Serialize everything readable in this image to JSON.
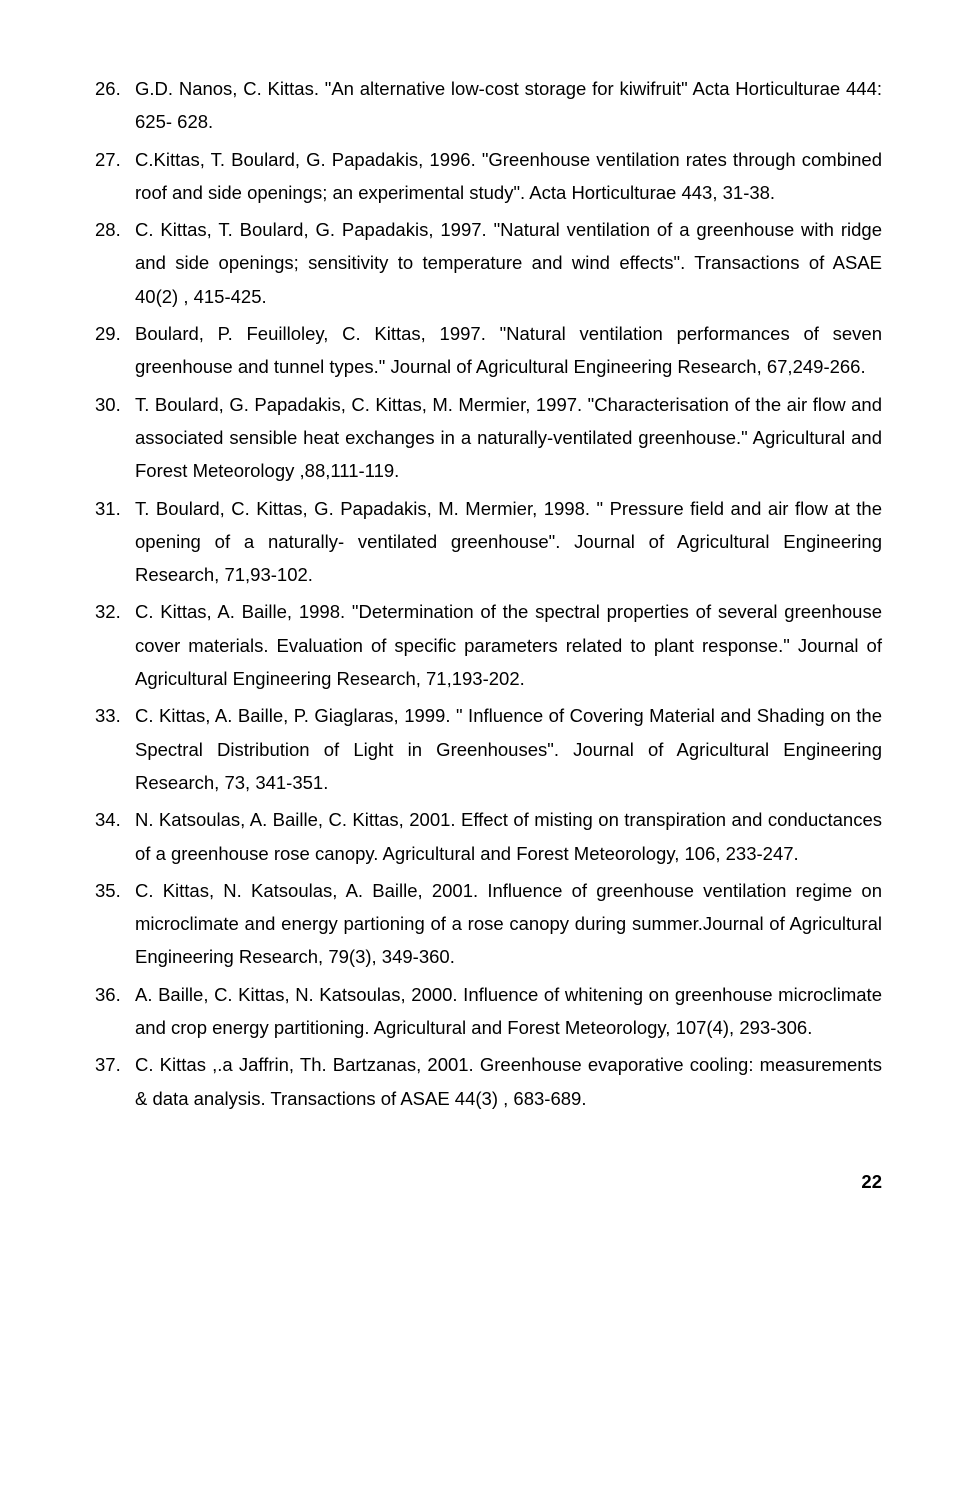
{
  "references": [
    "G.D. Nanos,  C. Kittas. \"An alternative low-cost storage for kiwifruit\" Acta Horticulturae 444: 625- 628.",
    "C.Kittas, T. Boulard, G. Papadakis, 1996. \"Greenhouse ventilation rates through combined roof and side openings; an experimental study\". Acta Horticulturae 443, 31-38.",
    "C. Kittas, T. Boulard, G. Papadakis, 1997. \"Natural ventilation of a greenhouse with ridge and side openings; sensitivity to temperature and wind effects\". Transactions of ASAE 40(2) , 415-425.",
    "Boulard, P. Feuilloley, C. Kittas, 1997. \"Natural ventilation performances of seven greenhouse and tunnel types.\" Journal of Agricultural Engineering Research, 67,249-266.",
    "T. Boulard, G. Papadakis, C. Kittas, M. Mermier, 1997. \"Characterisation of the air flow and associated sensible heat exchanges in a naturally-ventilated greenhouse.\" Agricultural and Forest Meteorology ,88,111-119.",
    "T. Boulard, C. Kittas, G. Papadakis, M. Mermier, 1998. \" Pressure field and air flow at the opening of a naturally- ventilated greenhouse\". Journal of Agricultural Engineering Research, 71,93-102.",
    "C. Kittas, A. Baille, 1998. \"Determination of the spectral properties of several greenhouse cover materials. Evaluation of specific parameters related to plant response.\" Journal of Agricultural Engineering Research, 71,193-202.",
    "C. Kittas, A. Baille, P. Giaglaras, 1999. \" Influence of Covering Material and Shading on the Spectral Distribution of Light in Greenhouses\". Journal of Agricultural Engineering Research, 73, 341-351.",
    "N. Katsoulas, A. Baille, C. Kittas, 2001. Effect of misting on transpiration and conductances of a greenhouse rose canopy. Agricultural and Forest Meteorology, 106, 233-247.",
    "C. Kittas, N. Katsoulas, A. Baille, 2001. Influence of greenhouse ventilation regime on microclimate and energy partioning of a rose canopy during summer.Journal of Agricultural Engineering Research, 79(3), 349-360.",
    "A. Baille, C. Kittas, N. Katsoulas, 2000. Influence of whitening on greenhouse microclimate and crop energy partitioning. Agricultural and Forest Meteorology, 107(4), 293-306.",
    "C. Kittas ,.a Jaffrin, Th. Bartzanas, 2001. Greenhouse evaporative cooling: measurements & data analysis. Transactions of ASAE 44(3) , 683-689."
  ],
  "page_number": "22"
}
